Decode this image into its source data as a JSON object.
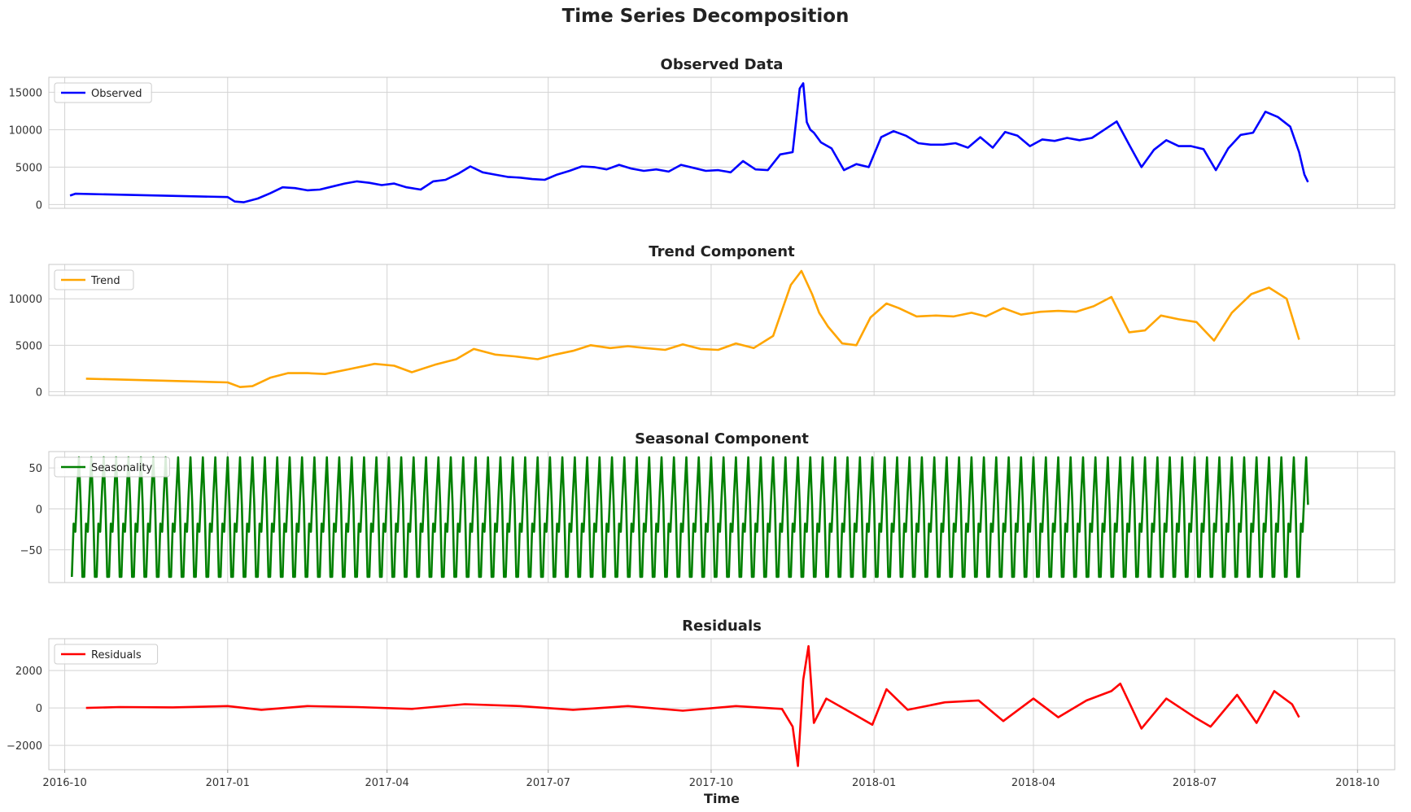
{
  "figure": {
    "title": "Time Series Decomposition",
    "xlabel": "Time",
    "x_ticks": [
      "2016-10",
      "2017-01",
      "2017-04",
      "2017-07",
      "2017-10",
      "2018-01",
      "2018-04",
      "2018-07",
      "2018-10"
    ],
    "x_range": [
      "2016-09-22",
      "2018-10-22"
    ]
  },
  "chart_data": [
    {
      "type": "line",
      "title": "Observed Data",
      "legend": "top-left",
      "grid": true,
      "color": "#0000ff",
      "ylim": [
        -500,
        17000
      ],
      "y_ticks": [
        0,
        5000,
        10000,
        15000
      ],
      "series": [
        {
          "name": "Observed",
          "x": [
            "2016-10-04",
            "2016-10-07",
            "2017-01-01",
            "2017-01-05",
            "2017-01-10",
            "2017-01-18",
            "2017-01-25",
            "2017-02-01",
            "2017-02-08",
            "2017-02-15",
            "2017-02-22",
            "2017-03-01",
            "2017-03-08",
            "2017-03-15",
            "2017-03-22",
            "2017-03-29",
            "2017-04-05",
            "2017-04-12",
            "2017-04-20",
            "2017-04-27",
            "2017-05-04",
            "2017-05-11",
            "2017-05-18",
            "2017-05-25",
            "2017-06-01",
            "2017-06-08",
            "2017-06-15",
            "2017-06-22",
            "2017-06-29",
            "2017-07-06",
            "2017-07-13",
            "2017-07-20",
            "2017-07-27",
            "2017-08-03",
            "2017-08-10",
            "2017-08-17",
            "2017-08-24",
            "2017-08-31",
            "2017-09-07",
            "2017-09-14",
            "2017-09-21",
            "2017-09-28",
            "2017-10-05",
            "2017-10-12",
            "2017-10-19",
            "2017-10-26",
            "2017-11-02",
            "2017-11-09",
            "2017-11-16",
            "2017-11-20",
            "2017-11-22",
            "2017-11-24",
            "2017-11-26",
            "2017-11-28",
            "2017-12-02",
            "2017-12-08",
            "2017-12-15",
            "2017-12-22",
            "2017-12-29",
            "2018-01-05",
            "2018-01-12",
            "2018-01-19",
            "2018-01-26",
            "2018-02-02",
            "2018-02-09",
            "2018-02-16",
            "2018-02-23",
            "2018-03-02",
            "2018-03-09",
            "2018-03-16",
            "2018-03-23",
            "2018-03-30",
            "2018-04-06",
            "2018-04-13",
            "2018-04-20",
            "2018-04-27",
            "2018-05-04",
            "2018-05-11",
            "2018-05-18",
            "2018-05-25",
            "2018-06-01",
            "2018-06-08",
            "2018-06-15",
            "2018-06-22",
            "2018-06-29",
            "2018-07-06",
            "2018-07-13",
            "2018-07-20",
            "2018-07-27",
            "2018-08-03",
            "2018-08-10",
            "2018-08-17",
            "2018-08-24",
            "2018-08-29",
            "2018-09-01",
            "2018-09-03"
          ],
          "values": [
            1200,
            1450,
            1000,
            400,
            300,
            800,
            1500,
            2300,
            2200,
            1900,
            2000,
            2400,
            2800,
            3100,
            2900,
            2600,
            2800,
            2300,
            2000,
            3100,
            3300,
            4100,
            5100,
            4300,
            4000,
            3700,
            3600,
            3400,
            3300,
            4000,
            4500,
            5100,
            5000,
            4700,
            5300,
            4800,
            4500,
            4700,
            4400,
            5300,
            4900,
            4500,
            4600,
            4300,
            5800,
            4700,
            4600,
            6700,
            7000,
            15500,
            16200,
            11000,
            10000,
            9600,
            8300,
            7500,
            4600,
            5400,
            5000,
            9000,
            9800,
            9200,
            8200,
            8000,
            8000,
            8200,
            7600,
            9000,
            7600,
            9700,
            9200,
            7800,
            8700,
            8500,
            8900,
            8600,
            8900,
            10000,
            11100,
            8000,
            5000,
            7300,
            8600,
            7800,
            7800,
            7400,
            4600,
            7500,
            9300,
            9600,
            12400,
            11700,
            10400,
            7000,
            4000,
            3000
          ]
        }
      ]
    },
    {
      "type": "line",
      "title": "Trend Component",
      "legend": "top-left",
      "grid": true,
      "color": "#ffa500",
      "ylim": [
        -400,
        13700
      ],
      "y_ticks": [
        0,
        5000,
        10000
      ],
      "series": [
        {
          "name": "Trend",
          "x": [
            "2016-10-13",
            "2017-01-01",
            "2017-01-08",
            "2017-01-15",
            "2017-01-25",
            "2017-02-04",
            "2017-02-15",
            "2017-02-25",
            "2017-03-10",
            "2017-03-25",
            "2017-04-05",
            "2017-04-15",
            "2017-04-28",
            "2017-05-10",
            "2017-05-20",
            "2017-06-01",
            "2017-06-12",
            "2017-06-25",
            "2017-07-05",
            "2017-07-15",
            "2017-07-25",
            "2017-08-05",
            "2017-08-15",
            "2017-08-25",
            "2017-09-05",
            "2017-09-15",
            "2017-09-25",
            "2017-10-05",
            "2017-10-15",
            "2017-10-25",
            "2017-11-05",
            "2017-11-15",
            "2017-11-21",
            "2017-11-27",
            "2017-12-01",
            "2017-12-06",
            "2017-12-14",
            "2017-12-22",
            "2017-12-30",
            "2018-01-08",
            "2018-01-15",
            "2018-01-25",
            "2018-02-05",
            "2018-02-15",
            "2018-02-25",
            "2018-03-05",
            "2018-03-15",
            "2018-03-25",
            "2018-04-05",
            "2018-04-15",
            "2018-04-25",
            "2018-05-05",
            "2018-05-15",
            "2018-05-25",
            "2018-06-03",
            "2018-06-12",
            "2018-06-22",
            "2018-07-02",
            "2018-07-12",
            "2018-07-22",
            "2018-08-02",
            "2018-08-12",
            "2018-08-22",
            "2018-08-29"
          ],
          "values": [
            1400,
            1000,
            500,
            600,
            1500,
            2000,
            2000,
            1900,
            2400,
            3000,
            2800,
            2100,
            2900,
            3500,
            4600,
            4000,
            3800,
            3500,
            4000,
            4400,
            5000,
            4700,
            4900,
            4700,
            4500,
            5100,
            4600,
            4500,
            5200,
            4700,
            6000,
            11500,
            13000,
            10500,
            8500,
            7000,
            5200,
            5000,
            8000,
            9500,
            9000,
            8100,
            8200,
            8100,
            8500,
            8100,
            9000,
            8300,
            8600,
            8700,
            8600,
            9200,
            10200,
            6400,
            6600,
            8200,
            7800,
            7500,
            5500,
            8500,
            10500,
            11200,
            10000,
            5600
          ]
        }
      ]
    },
    {
      "type": "line",
      "title": "Seasonal Component",
      "legend": "top-left",
      "grid": true,
      "color": "#008000",
      "ylim": [
        -90,
        70
      ],
      "y_ticks": [
        -50,
        0,
        50
      ],
      "series": [
        {
          "name": "Seasonality",
          "pattern_start": "2016-10-05",
          "pattern_end": "2018-09-03",
          "weekly_pattern": [
            -83,
            -18,
            -28,
            20,
            63,
            5,
            -83
          ]
        }
      ]
    },
    {
      "type": "line",
      "title": "Residuals",
      "legend": "top-left",
      "grid": true,
      "color": "#ff0000",
      "ylim": [
        -3300,
        3700
      ],
      "y_ticks": [
        -2000,
        0,
        2000
      ],
      "series": [
        {
          "name": "Residuals",
          "x": [
            "2016-10-13",
            "2016-11-01",
            "2016-12-01",
            "2017-01-01",
            "2017-01-20",
            "2017-02-15",
            "2017-03-15",
            "2017-04-15",
            "2017-05-15",
            "2017-06-15",
            "2017-07-15",
            "2017-08-15",
            "2017-09-15",
            "2017-10-15",
            "2017-11-10",
            "2017-11-16",
            "2017-11-19",
            "2017-11-22",
            "2017-11-25",
            "2017-11-28",
            "2017-12-05",
            "2017-12-20",
            "2017-12-31",
            "2018-01-08",
            "2018-01-20",
            "2018-02-10",
            "2018-03-01",
            "2018-03-15",
            "2018-04-01",
            "2018-04-15",
            "2018-05-01",
            "2018-05-15",
            "2018-05-20",
            "2018-06-01",
            "2018-06-15",
            "2018-07-01",
            "2018-07-10",
            "2018-07-25",
            "2018-08-05",
            "2018-08-15",
            "2018-08-25",
            "2018-08-29"
          ],
          "values": [
            0,
            50,
            30,
            100,
            -100,
            100,
            50,
            -50,
            200,
            100,
            -100,
            100,
            -150,
            100,
            -50,
            -1000,
            -3100,
            1500,
            3300,
            -800,
            500,
            -300,
            -900,
            1000,
            -100,
            300,
            400,
            -700,
            500,
            -500,
            400,
            900,
            1300,
            -1100,
            500,
            -500,
            -1000,
            700,
            -800,
            900,
            200,
            -500
          ]
        }
      ]
    }
  ]
}
